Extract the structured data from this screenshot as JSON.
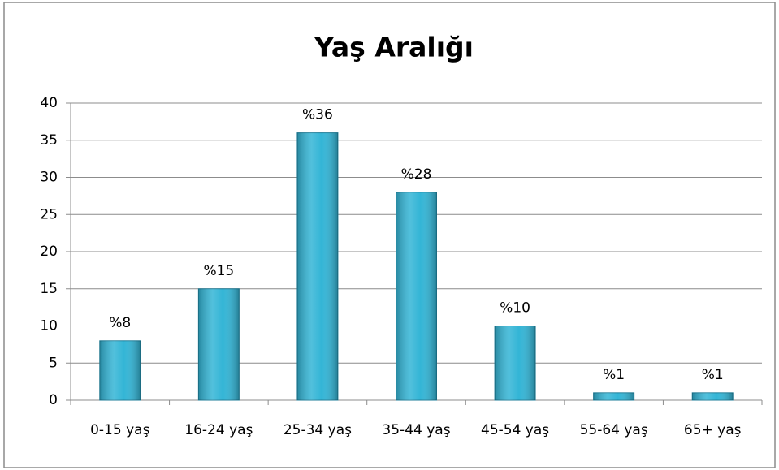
{
  "chart_data": {
    "type": "bar",
    "title": "Yaş Aralığı",
    "categories": [
      "0-15 yaş",
      "16-24 yaş",
      "25-34 yaş",
      "35-44 yaş",
      "45-54 yaş",
      "55-64 yaş",
      "65+ yaş"
    ],
    "values": [
      8,
      15,
      36,
      28,
      10,
      1,
      1
    ],
    "value_labels": [
      "%8",
      "%15",
      "%36",
      "%28",
      "%10",
      "%1",
      "%1"
    ],
    "color": "#33b5d6",
    "ylim": [
      0,
      40
    ],
    "yticks": [
      0,
      5,
      10,
      15,
      20,
      25,
      30,
      35,
      40
    ],
    "grid": true
  }
}
